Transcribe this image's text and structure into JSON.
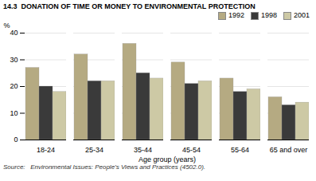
{
  "chart_data": {
    "type": "bar",
    "title": "14.3  DONATION OF TIME OR MONEY TO ENVIRONMENTAL PROTECTION",
    "xlabel": "Age group (years)",
    "ylabel": "%",
    "source": "Source:   Environmental Issues: People’s Views and Practices (4502.0).",
    "categories": [
      "18-24",
      "25-34",
      "35-44",
      "45-54",
      "55-64",
      "65 and over"
    ],
    "series": [
      {
        "name": "1992",
        "color": "#b5aa82",
        "values": [
          27,
          32,
          36,
          29,
          23,
          16
        ]
      },
      {
        "name": "1998",
        "color": "#3a3a3a",
        "values": [
          20,
          22,
          25,
          21,
          18,
          13
        ]
      },
      {
        "name": "2001",
        "color": "#cdc9a5",
        "values": [
          18,
          22,
          23,
          22,
          19,
          14
        ]
      }
    ],
    "ylim": [
      0,
      40
    ],
    "yticks": [
      0,
      10,
      20,
      30,
      40
    ],
    "grid": true,
    "legend": "upper right"
  }
}
